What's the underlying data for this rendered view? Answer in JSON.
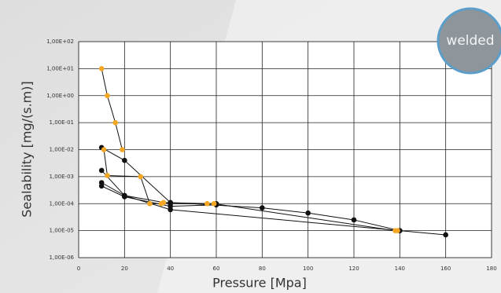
{
  "chart_data": {
    "type": "line",
    "xlabel": "Pressure [Mpa]",
    "ylabel": "Sealability [mg/(s.m)]",
    "badge": "welded",
    "log_y": true,
    "grid": true,
    "xlim": [
      0,
      180
    ],
    "xticks": [
      0,
      20,
      40,
      60,
      80,
      100,
      120,
      140,
      160,
      180
    ],
    "ylim": [
      1e-06,
      100
    ],
    "yticks": [
      {
        "value": 1e-06,
        "label": "1,00E-06"
      },
      {
        "value": 1e-05,
        "label": "1,00E-05"
      },
      {
        "value": 0.0001,
        "label": "1,00E-04"
      },
      {
        "value": 0.001,
        "label": "1,00E-03"
      },
      {
        "value": 0.01,
        "label": "1,00E-02"
      },
      {
        "value": 0.1,
        "label": "1,00E-01"
      },
      {
        "value": 1,
        "label": "1,00E+00"
      },
      {
        "value": 10,
        "label": "1,00E+01"
      },
      {
        "value": 100,
        "label": "1,00E+02"
      }
    ],
    "series": [
      {
        "color": "#111111",
        "x": [
          10,
          20,
          40,
          80,
          100,
          120,
          140,
          160
        ],
        "values": [
          0.012,
          0.004,
          0.00011,
          7e-05,
          4.5e-05,
          2.5e-05,
          1e-05,
          7e-06
        ]
      },
      {
        "color": "#111111",
        "x": [
          10,
          20,
          40,
          60
        ],
        "values": [
          0.0017,
          0.0002,
          0.0001,
          0.0001
        ]
      },
      {
        "color": "#111111",
        "x": [
          10,
          20,
          40,
          140
        ],
        "values": [
          0.0006,
          0.0002,
          6e-05,
          1e-05
        ]
      },
      {
        "color": "#111111",
        "x": [
          10,
          20,
          40,
          60
        ],
        "values": [
          0.00045,
          0.00018,
          8e-05,
          9e-05
        ]
      },
      {
        "color": "#f5a623",
        "x": [
          10,
          12.5,
          16,
          19
        ],
        "values": [
          10,
          1,
          0.1,
          0.01
        ]
      },
      {
        "color": "#f5a623",
        "x": [
          11,
          12.5,
          27,
          31,
          36,
          37,
          56,
          59,
          138,
          139
        ],
        "values": [
          0.01,
          0.0011,
          0.001,
          0.0001,
          0.0001,
          0.00011,
          0.0001,
          0.0001,
          1e-05,
          1e-05
        ]
      }
    ]
  }
}
